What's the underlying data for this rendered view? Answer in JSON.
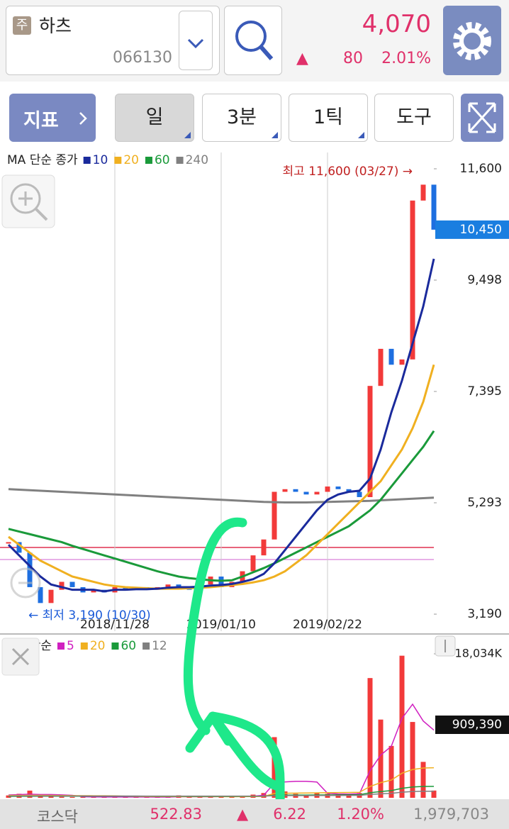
{
  "header": {
    "badge": "주",
    "name": "하츠",
    "code": "066130",
    "price": "4,070",
    "change_sign": "▲",
    "change": "80",
    "change_rate": "2.01%"
  },
  "toolbar": {
    "indicator": "지표",
    "tabs": [
      "일",
      "3분",
      "1틱"
    ],
    "tools": "도구"
  },
  "chart_data": [
    {
      "type": "candlestick",
      "legend_title": "MA 단순 종가",
      "categories": [
        null,
        null,
        null,
        null,
        null,
        null,
        null,
        null,
        null,
        null,
        "2018/11/28",
        null,
        null,
        null,
        null,
        null,
        null,
        null,
        null,
        null,
        "2019/01/10",
        null,
        null,
        null,
        null,
        null,
        null,
        null,
        null,
        null,
        "2019/02/22",
        null,
        null,
        null,
        null,
        null,
        null,
        null,
        null,
        null,
        null
      ],
      "values": [
        4550,
        4350,
        3700,
        3400,
        3650,
        3800,
        3700,
        3600,
        3650,
        3600,
        3700,
        3650,
        3700,
        3650,
        3700,
        3750,
        3700,
        3650,
        3750,
        3900,
        3700,
        3800,
        4000,
        4300,
        4600,
        5500,
        5550,
        5500,
        5450,
        5500,
        5600,
        5550,
        5500,
        5400,
        7500,
        8200,
        7900,
        8000,
        11000,
        11300,
        10450
      ],
      "value_labels": [
        null,
        null,
        null,
        null,
        null,
        null,
        null,
        null,
        null,
        null,
        null,
        null,
        null,
        null,
        null,
        null,
        null,
        null,
        null,
        null,
        null,
        null,
        null,
        null,
        null,
        null,
        null,
        null,
        null,
        null,
        null,
        null,
        null,
        null,
        null,
        null,
        null,
        null,
        null,
        null,
        "10,450"
      ],
      "up_color": "#f23a3a",
      "down_color": "#1e6fe0",
      "series": [
        {
          "name": "10",
          "color": "#1a2a9c",
          "values": [
            4500,
            4300,
            4100,
            3900,
            3750,
            3700,
            3650,
            3650,
            3650,
            3620,
            3650,
            3650,
            3660,
            3660,
            3670,
            3690,
            3700,
            3700,
            3710,
            3730,
            3740,
            3760,
            3800,
            3850,
            3950,
            4150,
            4400,
            4650,
            4900,
            5150,
            5350,
            5450,
            5500,
            5520,
            5750,
            6300,
            7000,
            7600,
            8300,
            9000,
            9900
          ]
        },
        {
          "name": "20",
          "color": "#f0b020",
          "values": [
            4650,
            4500,
            4350,
            4200,
            4100,
            4000,
            3900,
            3850,
            3800,
            3750,
            3720,
            3700,
            3690,
            3680,
            3670,
            3670,
            3670,
            3680,
            3690,
            3700,
            3720,
            3740,
            3760,
            3790,
            3830,
            3900,
            4000,
            4150,
            4300,
            4500,
            4700,
            4900,
            5100,
            5300,
            5500,
            5700,
            6000,
            6300,
            6700,
            7200,
            7900
          ]
        },
        {
          "name": "60",
          "color": "#1a9a3a",
          "values": [
            4800,
            4750,
            4700,
            4650,
            4600,
            4550,
            4480,
            4420,
            4360,
            4300,
            4240,
            4180,
            4120,
            4060,
            4000,
            3950,
            3900,
            3870,
            3850,
            3830,
            3820,
            3830,
            3900,
            3980,
            4060,
            4150,
            4250,
            4350,
            4450,
            4550,
            4650,
            4750,
            4850,
            5000,
            5150,
            5350,
            5600,
            5850,
            6100,
            6350,
            6650
          ]
        },
        {
          "name": "240",
          "color": "#808080",
          "values": [
            5550,
            5540,
            5530,
            5520,
            5510,
            5500,
            5490,
            5480,
            5470,
            5460,
            5450,
            5440,
            5430,
            5420,
            5410,
            5400,
            5390,
            5380,
            5370,
            5360,
            5350,
            5340,
            5330,
            5320,
            5310,
            5305,
            5300,
            5300,
            5300,
            5305,
            5310,
            5315,
            5320,
            5325,
            5330,
            5340,
            5350,
            5360,
            5370,
            5380,
            5390
          ]
        }
      ],
      "ylim": [
        2869,
        11908
      ],
      "yticks": [
        {
          "value": 3190,
          "label": "3,190"
        },
        {
          "value": 5293,
          "label": "5,293"
        },
        {
          "value": 7395,
          "label": "7,395"
        },
        {
          "value": 9498,
          "label": "9,498"
        },
        {
          "value": 11600,
          "label": "11,600"
        }
      ],
      "max_label": "최고 11,600 (03/27) →",
      "min_label": "← 최저 3,190 (10/30)"
    },
    {
      "type": "bar",
      "legend_title": "MA 단순",
      "color": "#f23a3a",
      "values": [
        300000,
        500000,
        900000,
        200000,
        150000,
        120000,
        100000,
        90000,
        110000,
        100000,
        90000,
        80000,
        100000,
        90000,
        80000,
        100000,
        300000,
        100000,
        90000,
        120000,
        150000,
        200000,
        250000,
        400000,
        600000,
        7600000,
        800000,
        500000,
        400000,
        600000,
        500000,
        450000,
        400000,
        600000,
        15000000,
        9800000,
        6500000,
        17800000,
        9500000,
        4500000,
        909390
      ],
      "value_labels": [
        null,
        null,
        null,
        null,
        null,
        null,
        null,
        null,
        null,
        null,
        null,
        null,
        null,
        null,
        null,
        null,
        null,
        null,
        null,
        null,
        null,
        null,
        null,
        null,
        null,
        null,
        null,
        null,
        null,
        null,
        null,
        null,
        null,
        null,
        null,
        null,
        null,
        null,
        null,
        null,
        "909,390"
      ],
      "series": [
        {
          "name": "5",
          "color": "#d020c0",
          "values": [
            350000,
            400000,
            450000,
            410000,
            410000,
            370000,
            310000,
            130000,
            110000,
            100000,
            100000,
            95000,
            95000,
            95000,
            90000,
            90000,
            135000,
            135000,
            135000,
            135000,
            150000,
            170000,
            160000,
            200000,
            320000,
            1820000,
            1990000,
            2060000,
            2060000,
            1980000,
            560000,
            490000,
            470000,
            510000,
            3390000,
            5350000,
            6460000,
            9940000,
            11720000,
            9620000,
            8480000
          ]
        },
        {
          "name": "20",
          "color": "#f0b020",
          "values": [
            300000,
            300000,
            310000,
            310000,
            300000,
            290000,
            280000,
            270000,
            260000,
            250000,
            240000,
            200000,
            180000,
            170000,
            160000,
            150000,
            150000,
            140000,
            140000,
            140000,
            140000,
            130000,
            140000,
            150000,
            170000,
            540000,
            570000,
            590000,
            600000,
            620000,
            640000,
            660000,
            670000,
            690000,
            1420000,
            1900000,
            2220000,
            3080000,
            3540000,
            3730000,
            3760000
          ]
        },
        {
          "name": "60",
          "color": "#1a9a3a",
          "values": [
            180000,
            185000,
            190000,
            195000,
            200000,
            200000,
            200000,
            200000,
            200000,
            200000,
            200000,
            200000,
            200000,
            195000,
            190000,
            185000,
            185000,
            180000,
            180000,
            180000,
            180000,
            180000,
            185000,
            190000,
            195000,
            320000,
            330000,
            340000,
            345000,
            350000,
            360000,
            370000,
            375000,
            380000,
            630000,
            790000,
            900000,
            1190000,
            1350000,
            1420000,
            1430000
          ]
        },
        {
          "name": "12",
          "color": "#808080",
          "values": [
            230000,
            230000,
            232000,
            232000,
            232000,
            230000,
            230000,
            228000,
            226000,
            224000,
            222000,
            220000,
            218000,
            216000,
            214000,
            212000,
            212000,
            210000,
            210000,
            208000,
            208000,
            206000,
            206000,
            206000,
            208000,
            270000,
            275000,
            280000,
            282000,
            285000,
            290000,
            293000,
            296000,
            300000,
            425000,
            505000,
            560000,
            705000,
            785000,
            820000,
            825000
          ]
        }
      ],
      "ylim": [
        0,
        19100000
      ],
      "yticks": [
        {
          "value": 18034000,
          "label": "18,034K"
        }
      ]
    }
  ],
  "footer": {
    "market": "코스닥",
    "index": "522.83",
    "sign": "▲",
    "change": "6.22",
    "rate": "1.20%",
    "volume": "1,979,703"
  }
}
